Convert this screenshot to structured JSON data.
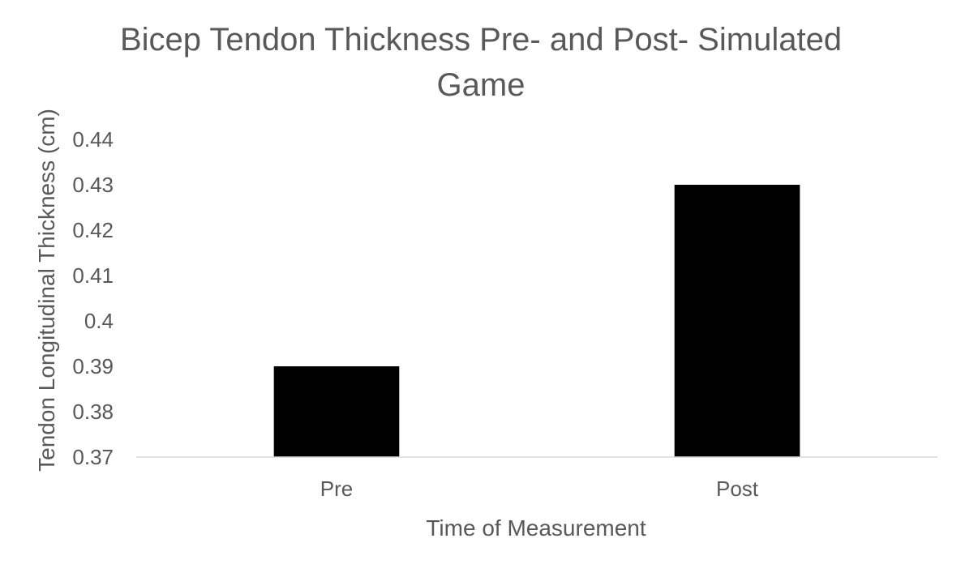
{
  "chart_data": {
    "type": "bar",
    "title_lines": [
      "Bicep Tendon Thickness Pre- and Post- Simulated",
      "Game"
    ],
    "xlabel": "Time of Measurement",
    "ylabel": "Tendon Longitudinal Thickness (cm)",
    "categories": [
      "Pre",
      "Post"
    ],
    "values": [
      0.39,
      0.43
    ],
    "ylim": [
      0.37,
      0.44
    ],
    "yticks": [
      0.37,
      0.38,
      0.39,
      0.4,
      0.41,
      0.42,
      0.43,
      0.44
    ],
    "ytick_labels": [
      "0.37",
      "0.38",
      "0.39",
      "0.4",
      "0.41",
      "0.42",
      "0.43",
      "0.44"
    ],
    "grid": false,
    "legend": "none",
    "colors": {
      "bar": "#000000",
      "text": "#595959",
      "axis": "#d9d9d9"
    }
  }
}
